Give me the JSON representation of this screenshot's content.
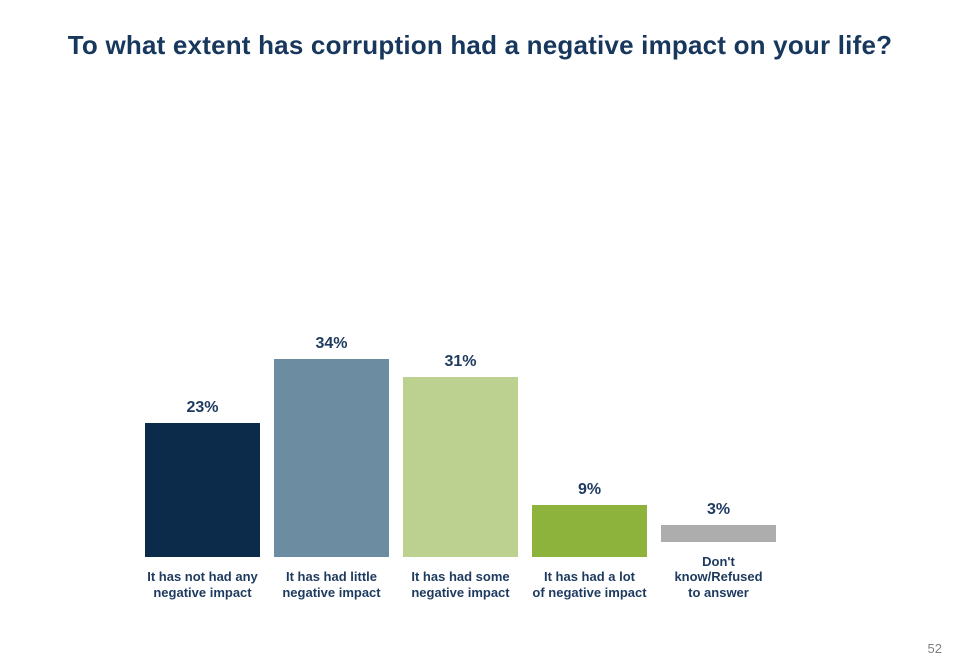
{
  "page": {
    "number": "52"
  },
  "colors": {
    "title_text": "#17375d",
    "label_text": "#1e3a5f",
    "page_number_text": "#7f7f7f",
    "background": "#ffffff"
  },
  "chart_data": {
    "type": "bar",
    "title": "To what extent has corruption had a negative impact on your life?",
    "categories": [
      "It has not had any\nnegative impact",
      "It has had little\nnegative impact",
      "It has had some\nnegative impact",
      "It has had a lot\nof negative impact",
      "Don't\nknow/Refused\nto answer",
      ""
    ],
    "values": [
      23,
      34,
      31,
      9,
      3
    ],
    "value_labels": [
      "23%",
      "34%",
      "31%",
      "9%",
      "3%"
    ],
    "bar_colors": [
      "#0c2a4a",
      "#6b8ca1",
      "#bcd18f",
      "#8db33d",
      "#adadad"
    ],
    "xlabel": "",
    "ylabel": "",
    "ylim": [
      0,
      40
    ],
    "grid": false,
    "legend": false,
    "data_labels_position": "above-bars",
    "axis_lines": "none"
  }
}
